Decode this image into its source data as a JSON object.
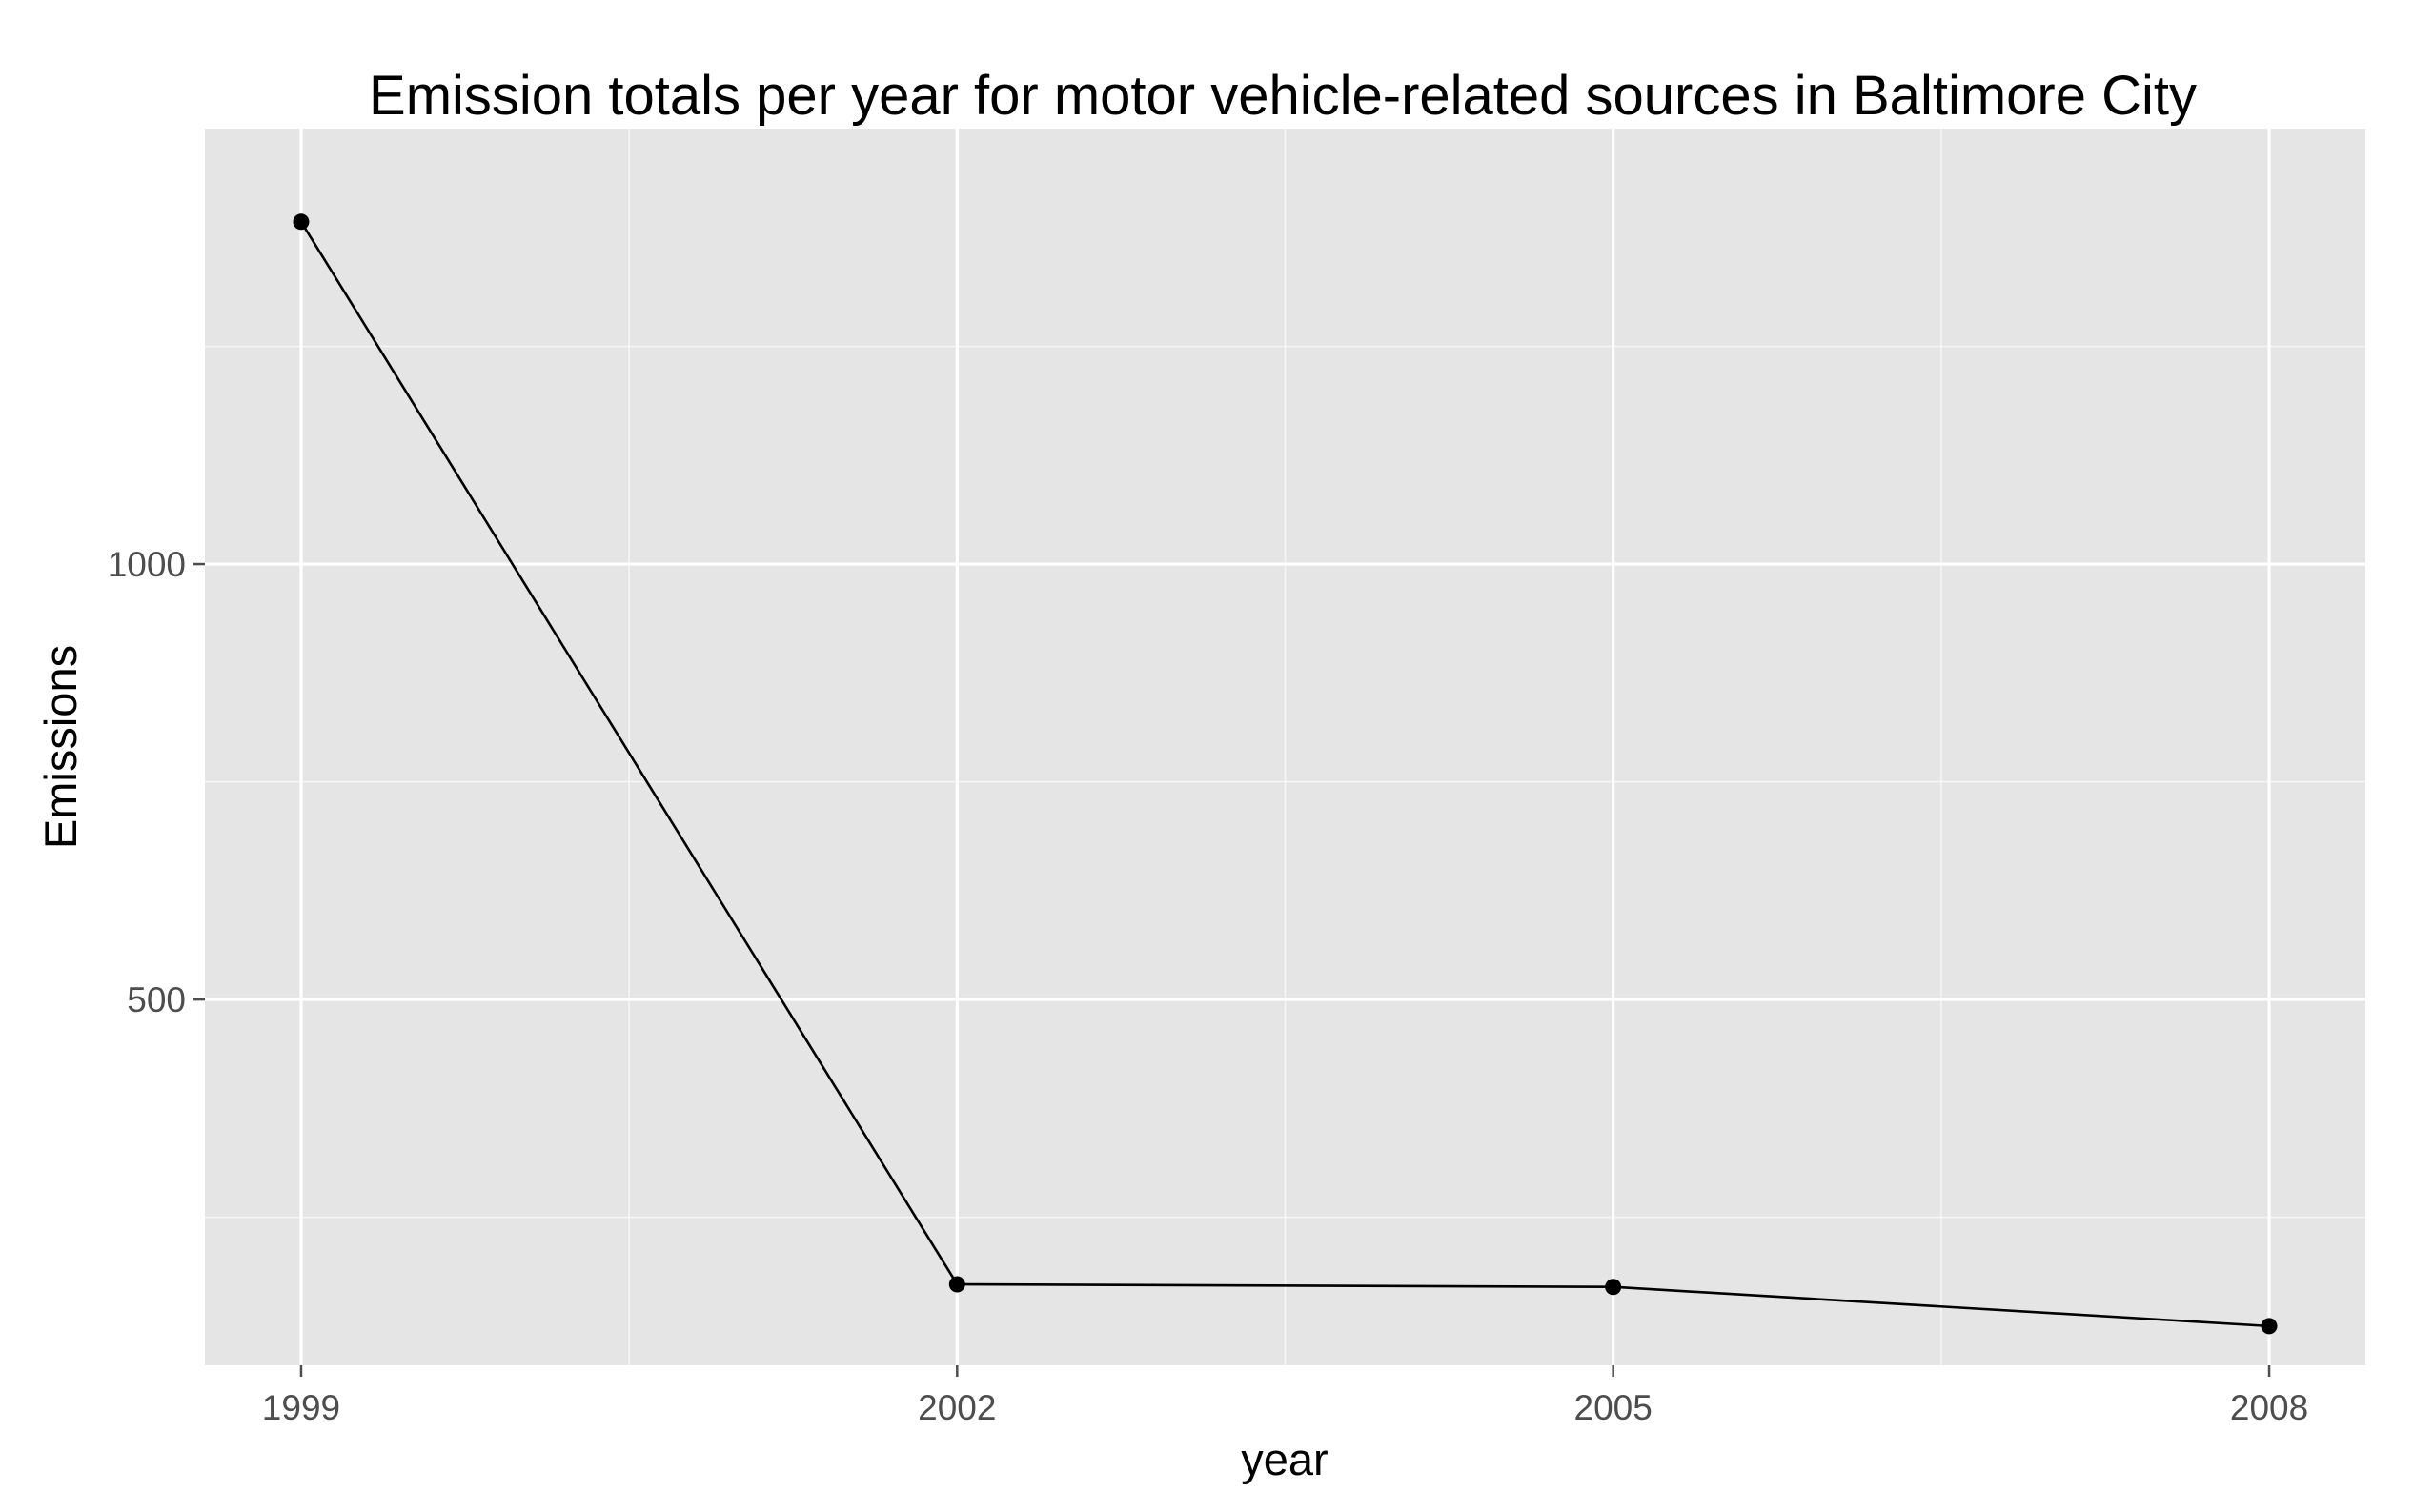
{
  "chart_data": {
    "type": "line",
    "title": "Emission totals per year for motor vehicle-related sources in Baltimore City",
    "xlabel": "year",
    "ylabel": "Emissions",
    "x": [
      1999,
      2002,
      2005,
      2008
    ],
    "x_ticks": [
      "1999",
      "2002",
      "2005",
      "2008"
    ],
    "y_ticks": [
      500,
      1000
    ],
    "xlim": [
      1998.56,
      2008.44
    ],
    "ylim": [
      80,
      1500
    ],
    "grid": true,
    "legend": "none",
    "series": [
      {
        "values": [
          1393,
          173,
          170,
          125
        ],
        "color": "#000000"
      }
    ],
    "panel_background": "#e5e5e5",
    "grid_color": "#ffffff"
  }
}
